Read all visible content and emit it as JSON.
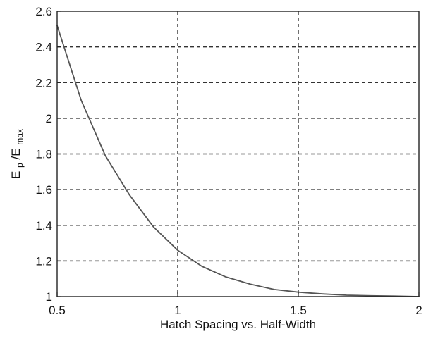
{
  "chart_data": {
    "type": "line",
    "title": "",
    "xlabel": "Hatch Spacing vs. Half-Width",
    "ylabel": {
      "main": "E",
      "sub1": "p",
      "slash": "/E",
      "sub2": "max"
    },
    "xlim": [
      0.5,
      2
    ],
    "ylim": [
      1,
      2.6
    ],
    "x_ticks": [
      {
        "value": 0.5,
        "label": "0.5"
      },
      {
        "value": 1,
        "label": "1"
      },
      {
        "value": 1.5,
        "label": "1.5"
      },
      {
        "value": 2,
        "label": "2"
      }
    ],
    "y_ticks": [
      {
        "value": 1,
        "label": "1"
      },
      {
        "value": 1.2,
        "label": "1.2"
      },
      {
        "value": 1.4,
        "label": "1.4"
      },
      {
        "value": 1.6,
        "label": "1.6"
      },
      {
        "value": 1.8,
        "label": "1.8"
      },
      {
        "value": 2,
        "label": "2"
      },
      {
        "value": 2.2,
        "label": "2.2"
      },
      {
        "value": 2.4,
        "label": "2.4"
      },
      {
        "value": 2.6,
        "label": "2.6"
      }
    ],
    "grid": true,
    "series": [
      {
        "color": "#555555",
        "x": [
          0.5,
          0.6,
          0.7,
          0.8,
          0.9,
          1.0,
          1.1,
          1.2,
          1.3,
          1.4,
          1.5,
          1.6,
          1.7,
          1.8,
          1.9,
          2.0
        ],
        "y": [
          2.52,
          2.1,
          1.79,
          1.57,
          1.39,
          1.26,
          1.17,
          1.11,
          1.07,
          1.04,
          1.025,
          1.015,
          1.008,
          1.005,
          1.003,
          1.0
        ]
      }
    ]
  }
}
